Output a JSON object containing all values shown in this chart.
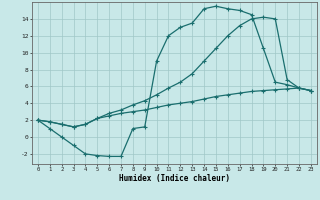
{
  "title": "",
  "xlabel": "Humidex (Indice chaleur)",
  "bg_color": "#c8e8e8",
  "grid_color": "#a0c8c8",
  "line_color": "#1a6e6e",
  "xlim": [
    -0.5,
    23.5
  ],
  "ylim": [
    -3.2,
    16.0
  ],
  "xticks": [
    0,
    1,
    2,
    3,
    4,
    5,
    6,
    7,
    8,
    9,
    10,
    11,
    12,
    13,
    14,
    15,
    16,
    17,
    18,
    19,
    20,
    21,
    22,
    23
  ],
  "yticks": [
    -2,
    0,
    2,
    4,
    6,
    8,
    10,
    12,
    14
  ],
  "line1_x": [
    0,
    1,
    2,
    3,
    4,
    5,
    6,
    7,
    8,
    9,
    10,
    11,
    12,
    13,
    14,
    15,
    16,
    17,
    18,
    19,
    20,
    21,
    22,
    23
  ],
  "line1_y": [
    2,
    1,
    0,
    -1,
    -2,
    -2.2,
    -2.3,
    -2.3,
    1.0,
    1.2,
    9.0,
    12.0,
    13.0,
    13.5,
    15.2,
    15.5,
    15.2,
    15.0,
    14.5,
    10.5,
    6.5,
    6.2,
    5.8,
    5.5
  ],
  "line2_x": [
    0,
    1,
    2,
    3,
    4,
    5,
    6,
    7,
    8,
    9,
    10,
    11,
    12,
    13,
    14,
    15,
    16,
    17,
    18,
    19,
    20,
    21,
    22,
    23
  ],
  "line2_y": [
    2,
    1.8,
    1.5,
    1.2,
    1.5,
    2.2,
    2.8,
    3.2,
    3.8,
    4.3,
    5.0,
    5.8,
    6.5,
    7.5,
    9.0,
    10.5,
    12.0,
    13.2,
    14.0,
    14.2,
    14.0,
    6.8,
    5.8,
    5.5
  ],
  "line3_x": [
    0,
    1,
    2,
    3,
    4,
    5,
    6,
    7,
    8,
    9,
    10,
    11,
    12,
    13,
    14,
    15,
    16,
    17,
    18,
    19,
    20,
    21,
    22,
    23
  ],
  "line3_y": [
    2,
    1.8,
    1.5,
    1.2,
    1.5,
    2.2,
    2.5,
    2.8,
    3.0,
    3.2,
    3.5,
    3.8,
    4.0,
    4.2,
    4.5,
    4.8,
    5.0,
    5.2,
    5.4,
    5.5,
    5.6,
    5.7,
    5.8,
    5.5
  ]
}
